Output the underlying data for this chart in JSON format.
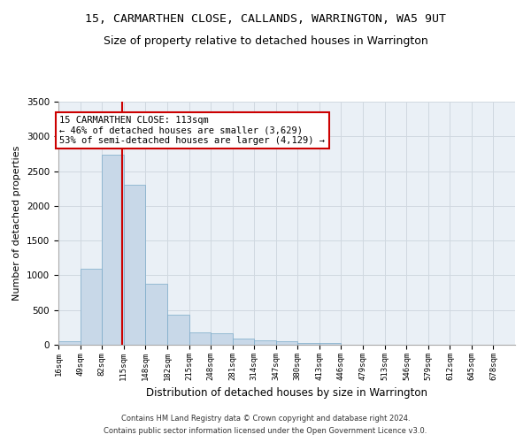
{
  "title1": "15, CARMARTHEN CLOSE, CALLANDS, WARRINGTON, WA5 9UT",
  "title2": "Size of property relative to detached houses in Warrington",
  "xlabel": "Distribution of detached houses by size in Warrington",
  "ylabel": "Number of detached properties",
  "footnote1": "Contains HM Land Registry data © Crown copyright and database right 2024.",
  "footnote2": "Contains public sector information licensed under the Open Government Licence v3.0.",
  "bin_labels": [
    "16sqm",
    "49sqm",
    "82sqm",
    "115sqm",
    "148sqm",
    "182sqm",
    "215sqm",
    "248sqm",
    "281sqm",
    "314sqm",
    "347sqm",
    "380sqm",
    "413sqm",
    "446sqm",
    "479sqm",
    "513sqm",
    "546sqm",
    "579sqm",
    "612sqm",
    "645sqm",
    "678sqm"
  ],
  "bin_edges": [
    16,
    49,
    82,
    115,
    148,
    182,
    215,
    248,
    281,
    314,
    347,
    380,
    413,
    446,
    479,
    513,
    546,
    579,
    612,
    645,
    678
  ],
  "bar_heights": [
    50,
    1100,
    2730,
    2300,
    880,
    430,
    175,
    165,
    95,
    65,
    50,
    30,
    25,
    5,
    5,
    3,
    2,
    1,
    1,
    0,
    0
  ],
  "bar_color": "#c8d8e8",
  "bar_edge_color": "#7aaac8",
  "property_size": 113,
  "vline_color": "#cc0000",
  "annotation_line1": "15 CARMARTHEN CLOSE: 113sqm",
  "annotation_line2": "← 46% of detached houses are smaller (3,629)",
  "annotation_line3": "53% of semi-detached houses are larger (4,129) →",
  "annotation_box_color": "#ffffff",
  "annotation_box_edge": "#cc0000",
  "ylim": [
    0,
    3500
  ],
  "yticks": [
    0,
    500,
    1000,
    1500,
    2000,
    2500,
    3000,
    3500
  ],
  "grid_color": "#d0d8e0",
  "bg_color": "#eaf0f6",
  "title1_fontsize": 9.5,
  "title2_fontsize": 9,
  "xlabel_fontsize": 8.5,
  "ylabel_fontsize": 8
}
